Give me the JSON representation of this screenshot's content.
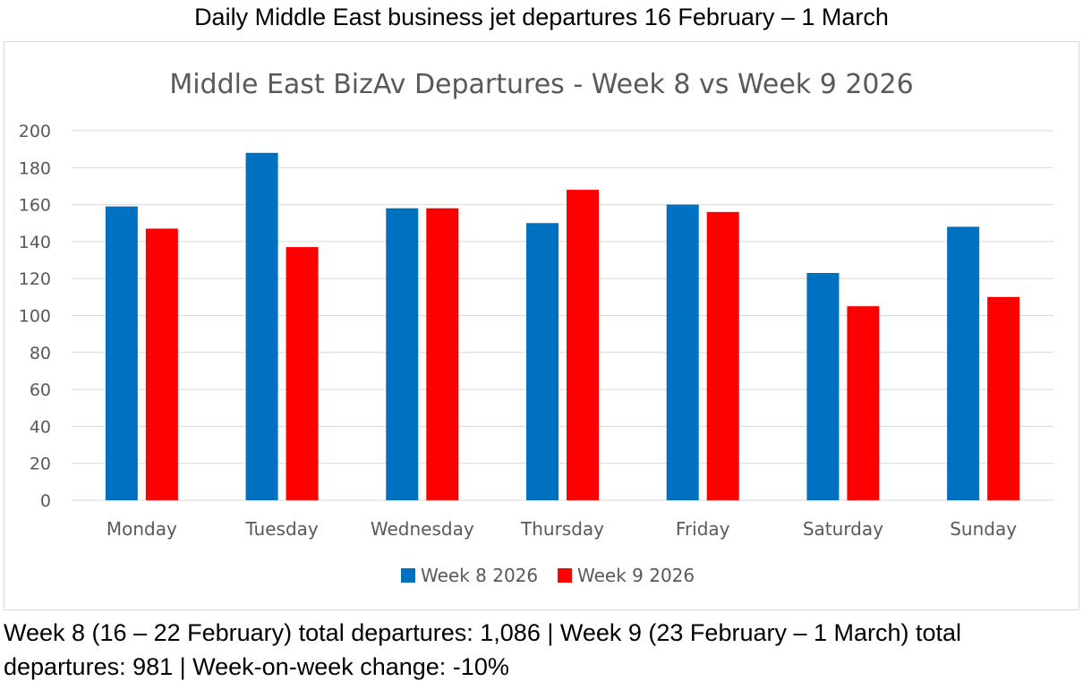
{
  "header": {
    "title": "Daily Middle East business jet departures 16 February – 1 March"
  },
  "chart_data": {
    "type": "bar",
    "title": "Middle East BizAv Departures - Week 8 vs Week 9 2026",
    "categories": [
      "Monday",
      "Tuesday",
      "Wednesday",
      "Thursday",
      "Friday",
      "Saturday",
      "Sunday"
    ],
    "series": [
      {
        "name": "Week 8 2026",
        "color": "#0070C0",
        "values": [
          159,
          188,
          158,
          150,
          160,
          123,
          148
        ]
      },
      {
        "name": "Week 9 2026",
        "color": "#FF0000",
        "values": [
          147,
          137,
          158,
          168,
          156,
          105,
          110
        ]
      }
    ],
    "ylim": [
      0,
      200
    ],
    "yticks": [
      0,
      20,
      40,
      60,
      80,
      100,
      120,
      140,
      160,
      180,
      200
    ],
    "grid": true,
    "legend": "bottom-center"
  },
  "footer": {
    "text": "Week 8 (16 – 22 February) total departures: 1,086 | Week 9 (23 February – 1 March) total departures: 981 | Week-on-week change: -10%"
  }
}
